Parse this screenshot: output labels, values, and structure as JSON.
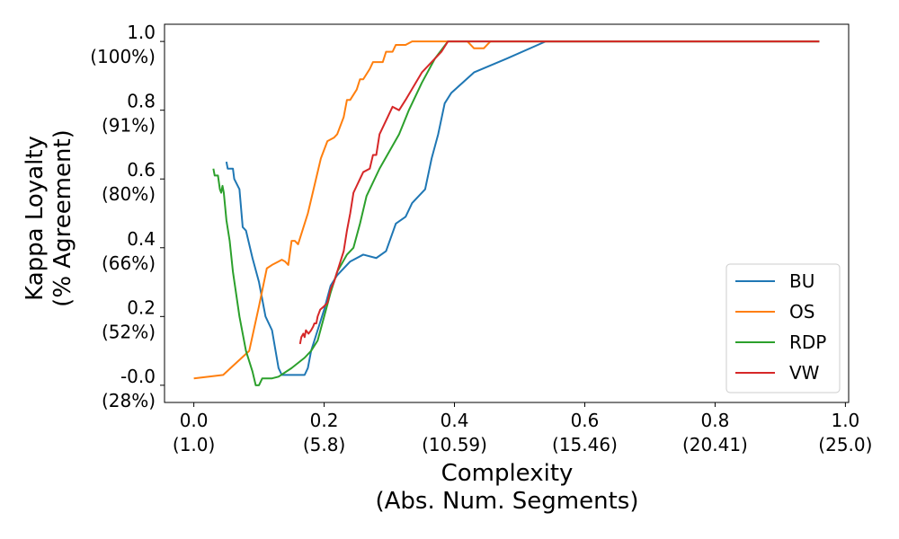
{
  "chart_data": {
    "type": "line",
    "title": "",
    "xlabel": {
      "line1": "Complexity",
      "line2": "(Abs. Num. Segments)"
    },
    "ylabel": {
      "line1": "Kappa Loyalty",
      "line2": "(% Agreement)"
    },
    "xlim": [
      -0.045,
      1.005
    ],
    "ylim": [
      -0.05,
      1.05
    ],
    "grid": false,
    "legend_position": "lower-right",
    "x_ticks": [
      {
        "value": 0.0,
        "label": "0.0",
        "sublabel": "(1.0)"
      },
      {
        "value": 0.2,
        "label": "0.2",
        "sublabel": "(5.8)"
      },
      {
        "value": 0.4,
        "label": "0.4",
        "sublabel": "(10.59)"
      },
      {
        "value": 0.6,
        "label": "0.6",
        "sublabel": "(15.46)"
      },
      {
        "value": 0.8,
        "label": "0.8",
        "sublabel": "(20.41)"
      },
      {
        "value": 1.0,
        "label": "1.0",
        "sublabel": "(25.0)"
      }
    ],
    "y_ticks": [
      {
        "value": 0.0,
        "label": "-0.0",
        "sublabel": "(28%)"
      },
      {
        "value": 0.2,
        "label": "0.2",
        "sublabel": "(52%)"
      },
      {
        "value": 0.4,
        "label": "0.4",
        "sublabel": "(66%)"
      },
      {
        "value": 0.6,
        "label": "0.6",
        "sublabel": "(80%)"
      },
      {
        "value": 0.8,
        "label": "0.8",
        "sublabel": "(91%)"
      },
      {
        "value": 1.0,
        "label": "1.0",
        "sublabel": "(100%)"
      }
    ],
    "series": [
      {
        "name": "BU",
        "color": "#1f77b4",
        "points": [
          [
            0.05,
            0.65
          ],
          [
            0.052,
            0.63
          ],
          [
            0.06,
            0.63
          ],
          [
            0.062,
            0.6
          ],
          [
            0.07,
            0.57
          ],
          [
            0.075,
            0.46
          ],
          [
            0.08,
            0.45
          ],
          [
            0.09,
            0.37
          ],
          [
            0.1,
            0.3
          ],
          [
            0.11,
            0.2
          ],
          [
            0.12,
            0.16
          ],
          [
            0.13,
            0.05
          ],
          [
            0.135,
            0.03
          ],
          [
            0.17,
            0.03
          ],
          [
            0.175,
            0.05
          ],
          [
            0.18,
            0.1
          ],
          [
            0.19,
            0.16
          ],
          [
            0.2,
            0.22
          ],
          [
            0.21,
            0.29
          ],
          [
            0.22,
            0.32
          ],
          [
            0.24,
            0.36
          ],
          [
            0.26,
            0.38
          ],
          [
            0.28,
            0.37
          ],
          [
            0.295,
            0.39
          ],
          [
            0.31,
            0.47
          ],
          [
            0.325,
            0.49
          ],
          [
            0.335,
            0.53
          ],
          [
            0.355,
            0.57
          ],
          [
            0.365,
            0.66
          ],
          [
            0.375,
            0.73
          ],
          [
            0.385,
            0.82
          ],
          [
            0.395,
            0.85
          ],
          [
            0.43,
            0.91
          ],
          [
            0.48,
            0.95
          ],
          [
            0.54,
            1.0
          ],
          [
            0.96,
            1.0
          ]
        ]
      },
      {
        "name": "OS",
        "color": "#ff7f0e",
        "points": [
          [
            0.0,
            0.02
          ],
          [
            0.045,
            0.03
          ],
          [
            0.085,
            0.1
          ],
          [
            0.1,
            0.23
          ],
          [
            0.112,
            0.34
          ],
          [
            0.12,
            0.35
          ],
          [
            0.13,
            0.36
          ],
          [
            0.135,
            0.365
          ],
          [
            0.14,
            0.36
          ],
          [
            0.145,
            0.35
          ],
          [
            0.15,
            0.42
          ],
          [
            0.155,
            0.42
          ],
          [
            0.16,
            0.41
          ],
          [
            0.175,
            0.5
          ],
          [
            0.185,
            0.58
          ],
          [
            0.195,
            0.66
          ],
          [
            0.205,
            0.71
          ],
          [
            0.215,
            0.72
          ],
          [
            0.22,
            0.73
          ],
          [
            0.23,
            0.78
          ],
          [
            0.235,
            0.83
          ],
          [
            0.24,
            0.83
          ],
          [
            0.25,
            0.86
          ],
          [
            0.255,
            0.89
          ],
          [
            0.26,
            0.89
          ],
          [
            0.27,
            0.92
          ],
          [
            0.275,
            0.94
          ],
          [
            0.29,
            0.94
          ],
          [
            0.295,
            0.97
          ],
          [
            0.305,
            0.97
          ],
          [
            0.31,
            0.99
          ],
          [
            0.325,
            0.99
          ],
          [
            0.335,
            1.0
          ],
          [
            0.42,
            1.0
          ],
          [
            0.43,
            0.98
          ],
          [
            0.445,
            0.98
          ],
          [
            0.455,
            1.0
          ],
          [
            0.96,
            1.0
          ]
        ]
      },
      {
        "name": "RDP",
        "color": "#2ca02c",
        "points": [
          [
            0.03,
            0.63
          ],
          [
            0.032,
            0.61
          ],
          [
            0.037,
            0.61
          ],
          [
            0.04,
            0.57
          ],
          [
            0.042,
            0.56
          ],
          [
            0.044,
            0.58
          ],
          [
            0.046,
            0.56
          ],
          [
            0.05,
            0.48
          ],
          [
            0.055,
            0.42
          ],
          [
            0.06,
            0.33
          ],
          [
            0.07,
            0.2
          ],
          [
            0.08,
            0.1
          ],
          [
            0.09,
            0.04
          ],
          [
            0.095,
            0.0
          ],
          [
            0.1,
            0.0
          ],
          [
            0.105,
            0.02
          ],
          [
            0.12,
            0.02
          ],
          [
            0.13,
            0.025
          ],
          [
            0.15,
            0.05
          ],
          [
            0.17,
            0.08
          ],
          [
            0.18,
            0.1
          ],
          [
            0.19,
            0.13
          ],
          [
            0.2,
            0.2
          ],
          [
            0.21,
            0.27
          ],
          [
            0.22,
            0.33
          ],
          [
            0.235,
            0.38
          ],
          [
            0.245,
            0.4
          ],
          [
            0.255,
            0.47
          ],
          [
            0.265,
            0.55
          ],
          [
            0.285,
            0.63
          ],
          [
            0.3,
            0.68
          ],
          [
            0.315,
            0.73
          ],
          [
            0.33,
            0.8
          ],
          [
            0.35,
            0.88
          ],
          [
            0.37,
            0.95
          ],
          [
            0.39,
            1.0
          ],
          [
            0.96,
            1.0
          ]
        ]
      },
      {
        "name": "VW",
        "color": "#d62728",
        "points": [
          [
            0.163,
            0.12
          ],
          [
            0.165,
            0.14
          ],
          [
            0.168,
            0.15
          ],
          [
            0.17,
            0.14
          ],
          [
            0.172,
            0.16
          ],
          [
            0.176,
            0.15
          ],
          [
            0.18,
            0.16
          ],
          [
            0.183,
            0.17
          ],
          [
            0.185,
            0.18
          ],
          [
            0.188,
            0.18
          ],
          [
            0.19,
            0.2
          ],
          [
            0.194,
            0.22
          ],
          [
            0.2,
            0.23
          ],
          [
            0.205,
            0.24
          ],
          [
            0.21,
            0.28
          ],
          [
            0.215,
            0.3
          ],
          [
            0.22,
            0.33
          ],
          [
            0.225,
            0.36
          ],
          [
            0.23,
            0.39
          ],
          [
            0.235,
            0.45
          ],
          [
            0.24,
            0.5
          ],
          [
            0.245,
            0.56
          ],
          [
            0.25,
            0.58
          ],
          [
            0.255,
            0.6
          ],
          [
            0.26,
            0.62
          ],
          [
            0.27,
            0.63
          ],
          [
            0.275,
            0.67
          ],
          [
            0.28,
            0.67
          ],
          [
            0.285,
            0.73
          ],
          [
            0.29,
            0.75
          ],
          [
            0.295,
            0.77
          ],
          [
            0.305,
            0.81
          ],
          [
            0.315,
            0.8
          ],
          [
            0.325,
            0.83
          ],
          [
            0.35,
            0.91
          ],
          [
            0.38,
            0.97
          ],
          [
            0.39,
            1.0
          ],
          [
            0.96,
            1.0
          ]
        ]
      }
    ]
  }
}
